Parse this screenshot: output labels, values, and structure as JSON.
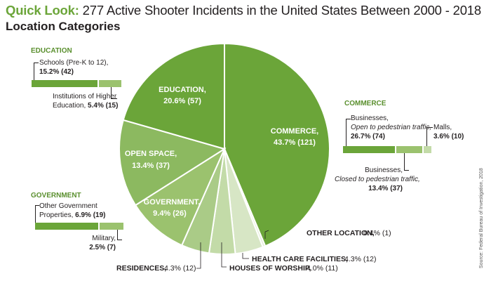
{
  "title_prefix": "Quick Look:",
  "title_main": "277 Active Shooter Incidents in the United States Between 2000 - 2018",
  "subtitle": "Location Categories",
  "source": "Source: Federal Bureau of Investigation, 2018",
  "colors": {
    "commerce": "#6ba539",
    "education": "#6ba539",
    "open_space": "#8cb960",
    "government": "#9bc26e",
    "residences": "#aacb87",
    "worship": "#c3dba8",
    "health": "#d7e6c5",
    "other": "#e6efdb"
  },
  "chart_data": {
    "type": "pie",
    "slices": [
      {
        "label": "COMMERCE,",
        "value_text": "43.7% (121)",
        "percent": 43.7,
        "count": 121
      },
      {
        "label": "OTHER LOCATION,",
        "value_text": "0.4% (1)",
        "percent": 0.4,
        "count": 1
      },
      {
        "label": "HEALTH CARE FACILITIES,",
        "value_text": "4.3% (12)",
        "percent": 4.3,
        "count": 12
      },
      {
        "label": "HOUSES OF WORSHIP,",
        "value_text": "4.0% (11)",
        "percent": 4.0,
        "count": 11
      },
      {
        "label": "RESIDENCES,",
        "value_text": "4.3% (12)",
        "percent": 4.3,
        "count": 12
      },
      {
        "label": "GOVERNMENT,",
        "value_text": "9.4% (26)",
        "percent": 9.4,
        "count": 26
      },
      {
        "label": "OPEN SPACE,",
        "value_text": "13.4% (37)",
        "percent": 13.4,
        "count": 37
      },
      {
        "label": "EDUCATION,",
        "value_text": "20.6% (57)",
        "percent": 20.6,
        "count": 57
      }
    ],
    "breakdowns": {
      "education": {
        "heading": "EDUCATION",
        "items": [
          {
            "text": "Schools (Pre-K to 12),",
            "value_text": "15.2% (42)",
            "percent": 15.2
          },
          {
            "text_lines": [
              "Institutions of Higher",
              "Education,"
            ],
            "value_text": "5.4% (15)",
            "percent": 5.4
          }
        ]
      },
      "commerce": {
        "heading": "COMMERCE",
        "items": [
          {
            "text": "Businesses,",
            "italic": "Open to pedestrian traffic,",
            "value_text": "26.7% (74)",
            "percent": 26.7
          },
          {
            "text": "Businesses,",
            "italic": "Closed to pedestrian traffic,",
            "value_text": "13.4% (37)",
            "percent": 13.4
          },
          {
            "text": "Malls,",
            "value_text": "3.6% (10)",
            "percent": 3.6
          }
        ]
      },
      "government": {
        "heading": "GOVERNMENT",
        "items": [
          {
            "text_lines": [
              "Other Government",
              "Properties,"
            ],
            "value_text": "6.9% (19)",
            "percent": 6.9
          },
          {
            "text": "Military,",
            "value_text": "2.5% (7)",
            "percent": 2.5
          }
        ]
      }
    }
  }
}
